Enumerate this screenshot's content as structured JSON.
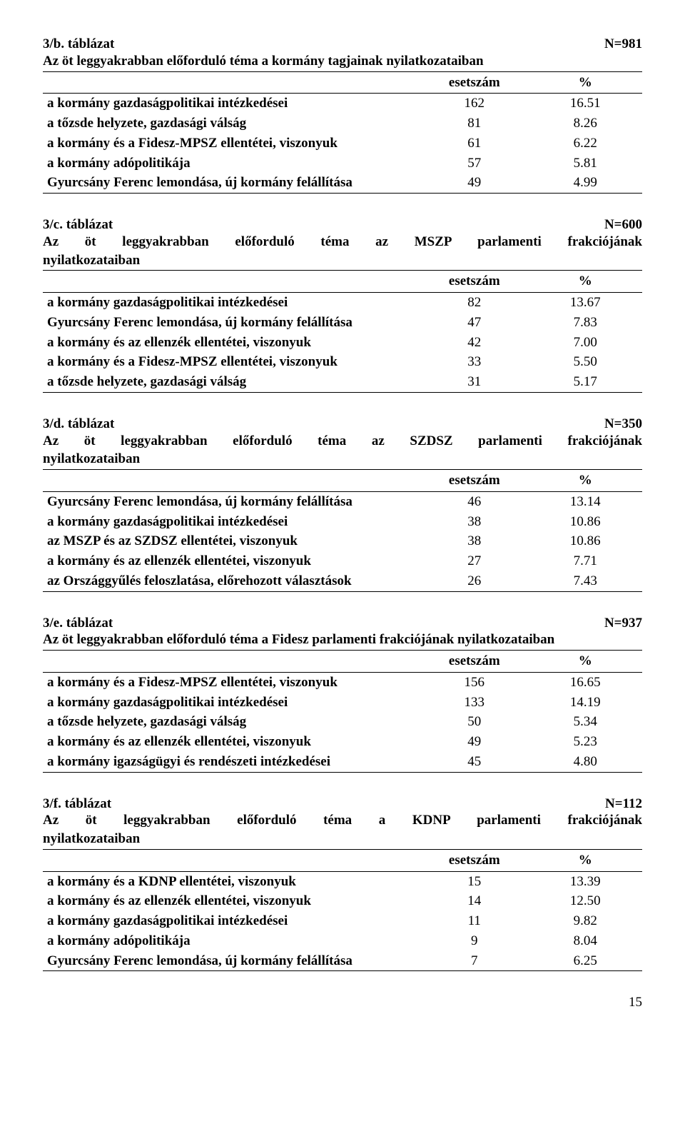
{
  "page_number": "15",
  "tables": [
    {
      "code": "3/b. táblázat",
      "n": "N=981",
      "subtitle_lines": [
        "Az öt leggyakrabban előforduló téma a kormány tagjainak nyilatkozataiban"
      ],
      "justify": false,
      "headers": {
        "count": "esetszám",
        "pct": "%"
      },
      "rows": [
        {
          "label": "a kormány gazdaságpolitikai intézkedései",
          "count": "162",
          "pct": "16.51"
        },
        {
          "label": "a tőzsde helyzete, gazdasági válság",
          "count": "81",
          "pct": "8.26"
        },
        {
          "label": "a kormány és a Fidesz-MPSZ ellentétei, viszonyuk",
          "count": "61",
          "pct": "6.22"
        },
        {
          "label": "a kormány adópolitikája",
          "count": "57",
          "pct": "5.81"
        },
        {
          "label": "Gyurcsány Ferenc lemondása, új kormány felállítása",
          "count": "49",
          "pct": "4.99"
        }
      ]
    },
    {
      "code": "3/c. táblázat",
      "n": "N=600",
      "subtitle_lines": [
        "Az öt leggyakrabban előforduló téma az MSZP parlamenti frakciójának",
        "nyilatkozataiban"
      ],
      "justify": true,
      "headers": {
        "count": "esetszám",
        "pct": "%"
      },
      "rows": [
        {
          "label": "a kormány gazdaságpolitikai intézkedései",
          "count": "82",
          "pct": "13.67"
        },
        {
          "label": "Gyurcsány Ferenc lemondása, új kormány felállítása",
          "count": "47",
          "pct": "7.83"
        },
        {
          "label": "a kormány és az ellenzék ellentétei, viszonyuk",
          "count": "42",
          "pct": "7.00"
        },
        {
          "label": "a kormány és a Fidesz-MPSZ ellentétei, viszonyuk",
          "count": "33",
          "pct": "5.50"
        },
        {
          "label": "a tőzsde helyzete, gazdasági válság",
          "count": "31",
          "pct": "5.17"
        }
      ]
    },
    {
      "code": "3/d. táblázat",
      "n": "N=350",
      "subtitle_lines": [
        "Az öt leggyakrabban előforduló téma az SZDSZ parlamenti frakciójának",
        "nyilatkozataiban"
      ],
      "justify": true,
      "headers": {
        "count": "esetszám",
        "pct": "%"
      },
      "rows": [
        {
          "label": "Gyurcsány Ferenc lemondása, új kormány felállítása",
          "count": "46",
          "pct": "13.14"
        },
        {
          "label": "a kormány gazdaságpolitikai intézkedései",
          "count": "38",
          "pct": "10.86"
        },
        {
          "label": "az MSZP és az SZDSZ ellentétei, viszonyuk",
          "count": "38",
          "pct": "10.86"
        },
        {
          "label": "a kormány és az ellenzék ellentétei, viszonyuk",
          "count": "27",
          "pct": "7.71"
        },
        {
          "label": "az Országgyűlés feloszlatása, előrehozott választások",
          "count": "26",
          "pct": "7.43"
        }
      ]
    },
    {
      "code": "3/e. táblázat",
      "n": "N=937",
      "subtitle_lines": [
        "Az öt leggyakrabban előforduló téma a Fidesz parlamenti frakciójának nyilatkozataiban"
      ],
      "justify": false,
      "headers": {
        "count": "esetszám",
        "pct": "%"
      },
      "rows": [
        {
          "label": "a kormány és a Fidesz-MPSZ ellentétei, viszonyuk",
          "count": "156",
          "pct": "16.65"
        },
        {
          "label": "a kormány gazdaságpolitikai intézkedései",
          "count": "133",
          "pct": "14.19"
        },
        {
          "label": "a tőzsde helyzete, gazdasági válság",
          "count": "50",
          "pct": "5.34"
        },
        {
          "label": "a kormány és az ellenzék ellentétei, viszonyuk",
          "count": "49",
          "pct": "5.23"
        },
        {
          "label": "a kormány igazságügyi és rendészeti intézkedései",
          "count": "45",
          "pct": "4.80"
        }
      ]
    },
    {
      "code": "3/f. táblázat",
      "n": "N=112",
      "subtitle_lines": [
        "Az öt leggyakrabban előforduló téma a KDNP parlamenti frakciójának",
        "nyilatkozataiban"
      ],
      "justify": true,
      "headers": {
        "count": "esetszám",
        "pct": "%"
      },
      "rows": [
        {
          "label": "a kormány és a KDNP ellentétei, viszonyuk",
          "count": "15",
          "pct": "13.39"
        },
        {
          "label": "a kormány és az ellenzék ellentétei, viszonyuk",
          "count": "14",
          "pct": "12.50"
        },
        {
          "label": "a kormány gazdaságpolitikai intézkedései",
          "count": "11",
          "pct": "9.82"
        },
        {
          "label": "a kormány adópolitikája",
          "count": "9",
          "pct": "8.04"
        },
        {
          "label": "Gyurcsány Ferenc lemondása, új kormány felállítása",
          "count": "7",
          "pct": "6.25"
        }
      ]
    }
  ]
}
